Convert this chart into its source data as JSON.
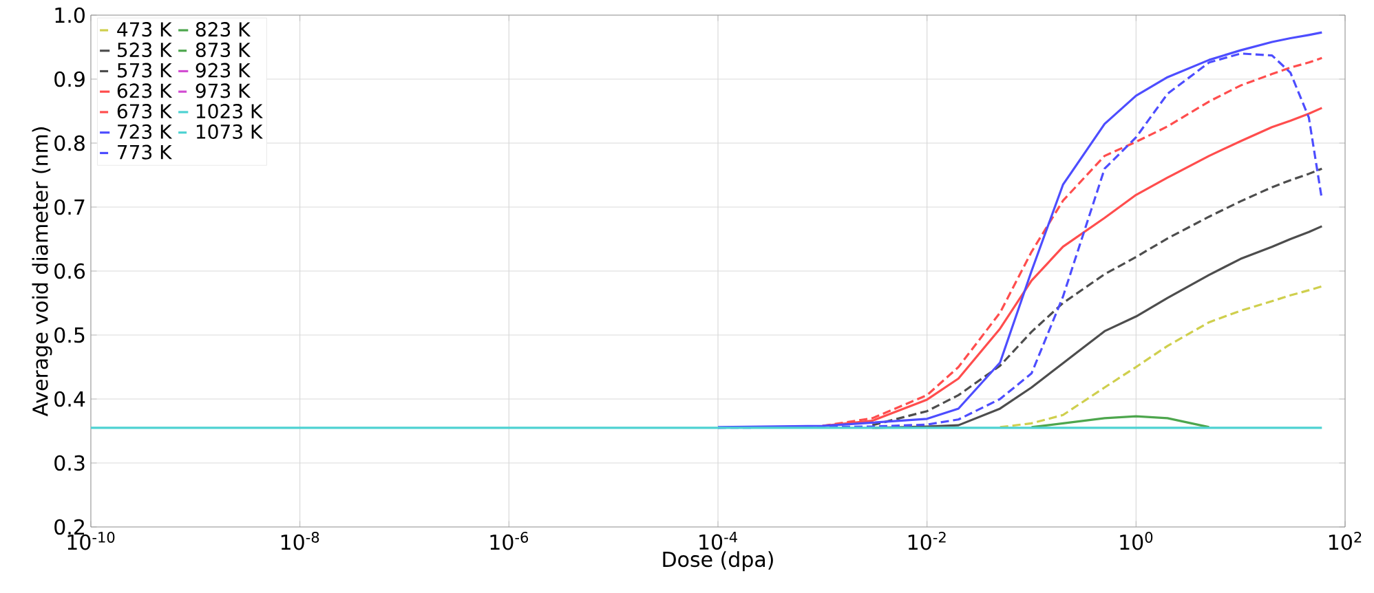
{
  "chart_data": {
    "type": "line",
    "xlabel": "Dose (dpa)",
    "ylabel": "Average void diameter (nm)",
    "log": "x",
    "grid": true,
    "legend": "top left",
    "marker": "none",
    "xlim": [
      1e-10,
      100
    ],
    "ylim": [
      0.2,
      1.0
    ],
    "xticks": [
      {
        "value": 1e-10,
        "label": "10$^{-10}$"
      },
      {
        "value": 1e-08,
        "label": "10$^{-8}$"
      },
      {
        "value": 1e-06,
        "label": "10$^{-6}$"
      },
      {
        "value": 0.0001,
        "label": "10$^{-4}$"
      },
      {
        "value": 0.01,
        "label": "10$^{-2}$"
      },
      {
        "value": 1,
        "label": "10$^{0}$"
      },
      {
        "value": 100,
        "label": "10$^{2}$"
      }
    ],
    "yticks": [
      0.2,
      0.3,
      0.4,
      0.5,
      0.6,
      0.7,
      0.8,
      0.9,
      {
        "value": 1.0,
        "label": "1.0"
      }
    ],
    "x": [
      1e-10,
      1e-05,
      0.0001,
      0.001,
      0.003,
      0.01,
      0.02,
      0.05,
      0.1,
      0.2,
      0.5,
      1,
      2,
      5,
      10,
      20,
      30,
      45,
      60
    ],
    "series": [
      {
        "name": "473 K",
        "color": "#cfcf4d",
        "line_style": "dashed",
        "values": [
          null,
          null,
          null,
          null,
          null,
          null,
          null,
          0.356,
          0.362,
          0.375,
          0.418,
          0.45,
          0.483,
          0.52,
          0.538,
          0.553,
          0.562,
          0.57,
          0.576
        ]
      },
      {
        "name": "523 K",
        "color": "#4d4d4d",
        "line_style": "solid",
        "values": [
          null,
          null,
          null,
          null,
          0.355,
          0.357,
          0.359,
          0.385,
          0.418,
          0.456,
          0.506,
          0.529,
          0.558,
          0.594,
          0.619,
          0.638,
          0.65,
          0.661,
          0.67
        ]
      },
      {
        "name": "573 K",
        "color": "#4d4d4d",
        "line_style": "dashed",
        "values": [
          null,
          null,
          null,
          null,
          0.359,
          0.381,
          0.406,
          0.452,
          0.505,
          0.55,
          0.595,
          0.622,
          0.651,
          0.685,
          0.709,
          0.731,
          0.742,
          0.752,
          0.76
        ]
      },
      {
        "name": "623 K",
        "color": "#ff4d4d",
        "line_style": "solid",
        "values": [
          null,
          null,
          null,
          0.358,
          0.366,
          0.399,
          0.432,
          0.51,
          0.585,
          0.638,
          0.683,
          0.719,
          0.746,
          0.78,
          0.803,
          0.825,
          0.835,
          0.846,
          0.855
        ]
      },
      {
        "name": "673 K",
        "color": "#ff4d4d",
        "line_style": "dashed",
        "values": [
          null,
          null,
          null,
          0.358,
          0.37,
          0.406,
          0.45,
          0.535,
          0.63,
          0.71,
          0.78,
          0.802,
          0.826,
          0.865,
          0.89,
          0.908,
          0.918,
          0.926,
          0.933
        ]
      },
      {
        "name": "723 K",
        "color": "#4d4dff",
        "line_style": "solid",
        "values": [
          null,
          null,
          0.356,
          0.358,
          0.363,
          0.369,
          0.385,
          0.457,
          0.6,
          0.735,
          0.83,
          0.874,
          0.903,
          0.93,
          0.945,
          0.958,
          0.964,
          0.969,
          0.973
        ]
      },
      {
        "name": "773 K",
        "color": "#4d4dff",
        "line_style": "dashed",
        "values": [
          null,
          null,
          0.355,
          0.356,
          0.357,
          0.36,
          0.368,
          0.4,
          0.44,
          0.56,
          0.76,
          0.809,
          0.877,
          0.926,
          0.94,
          0.937,
          0.91,
          0.84,
          0.712
        ]
      },
      {
        "name": "823 K",
        "color": "#4da64d",
        "line_style": "solid",
        "values": [
          null,
          null,
          null,
          null,
          null,
          null,
          null,
          null,
          0.356,
          0.362,
          0.37,
          0.373,
          0.37,
          0.356,
          null,
          null,
          null,
          null,
          null
        ]
      },
      {
        "name": "873 K",
        "color": "#4da64d",
        "line_style": "dashed",
        "values": [
          null,
          null,
          null,
          null,
          null,
          null,
          null,
          null,
          null,
          null,
          null,
          null,
          null,
          null,
          null,
          null,
          null,
          null,
          null
        ]
      },
      {
        "name": "923 K",
        "color": "#d24dd2",
        "line_style": "solid",
        "values": [
          null,
          null,
          null,
          null,
          null,
          null,
          null,
          null,
          null,
          null,
          null,
          null,
          null,
          null,
          null,
          null,
          null,
          null,
          null
        ]
      },
      {
        "name": "973 K",
        "color": "#d24dd2",
        "line_style": "dashed",
        "values": [
          null,
          null,
          null,
          null,
          null,
          null,
          null,
          null,
          null,
          null,
          null,
          null,
          null,
          null,
          null,
          null,
          null,
          null,
          null
        ]
      },
      {
        "name": "1023 K",
        "color": "#4dd2d2",
        "line_style": "solid",
        "values": [
          0.355,
          0.355,
          0.355,
          0.355,
          0.355,
          0.355,
          0.355,
          0.355,
          0.355,
          0.355,
          0.355,
          0.355,
          0.355,
          0.355,
          0.355,
          0.355,
          0.355,
          0.355,
          0.355
        ]
      },
      {
        "name": "1073 K",
        "color": "#4dd2d2",
        "line_style": "dashed",
        "values": [
          null,
          null,
          null,
          null,
          null,
          null,
          null,
          null,
          null,
          null,
          null,
          null,
          null,
          null,
          null,
          null,
          null,
          null,
          null
        ]
      }
    ]
  }
}
